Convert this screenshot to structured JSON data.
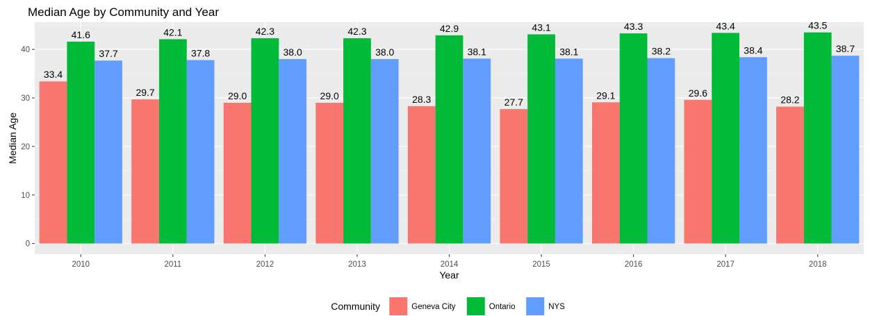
{
  "chart_data": {
    "type": "bar",
    "title": "Median Age by Community and Year",
    "xlabel": "Year",
    "ylabel": "Median Age",
    "categories": [
      "2010",
      "2011",
      "2012",
      "2013",
      "2014",
      "2015",
      "2016",
      "2017",
      "2018"
    ],
    "series": [
      {
        "name": "Geneva City",
        "color": "#F8766D",
        "values": [
          33.4,
          29.7,
          29.0,
          29.0,
          28.3,
          27.7,
          29.1,
          29.6,
          28.2
        ]
      },
      {
        "name": "Ontario",
        "color": "#00BA38",
        "values": [
          41.6,
          42.1,
          42.3,
          42.3,
          42.9,
          43.1,
          43.3,
          43.4,
          43.5
        ]
      },
      {
        "name": "NYS",
        "color": "#619CFF",
        "values": [
          37.7,
          37.8,
          38.0,
          38.0,
          38.1,
          38.1,
          38.2,
          38.4,
          38.7
        ]
      }
    ],
    "data_labels": [
      [
        "33.4",
        "29.7",
        "29.0",
        "29.0",
        "28.3",
        "27.7",
        "29.1",
        "29.6",
        "28.2"
      ],
      [
        "41.6",
        "42.1",
        "42.3",
        "42.3",
        "42.9",
        "43.1",
        "43.3",
        "43.4",
        "43.5"
      ],
      [
        "37.7",
        "37.8",
        "38.0",
        "38.0",
        "38.1",
        "38.1",
        "38.2",
        "38.4",
        "38.7"
      ]
    ],
    "y_ticks": [
      0,
      10,
      20,
      30,
      40
    ],
    "y_tick_labels": [
      "0",
      "10",
      "20",
      "30",
      "40"
    ],
    "ylim": [
      -2.2,
      45.6
    ],
    "grid": true,
    "legend_title": "Community",
    "legend_position": "bottom"
  }
}
